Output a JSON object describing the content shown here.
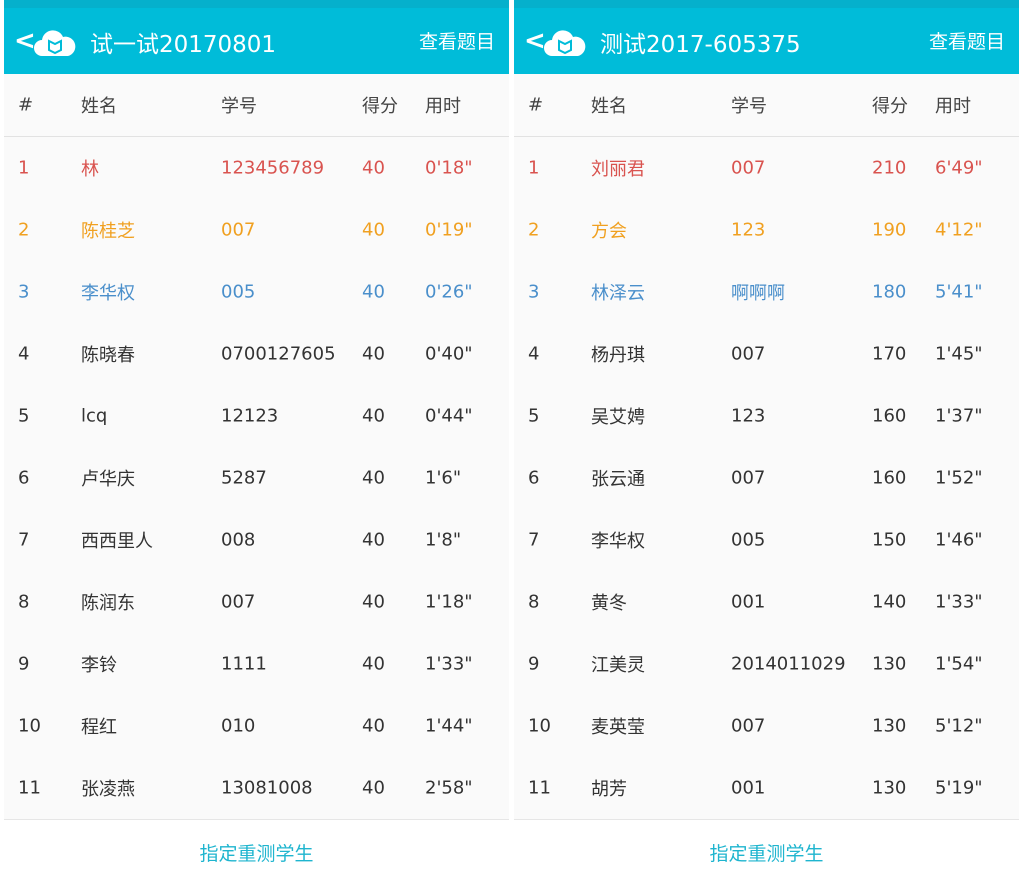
{
  "columns": [
    "#",
    "姓名",
    "学号",
    "得分",
    "用时"
  ],
  "view_questions_label": "查看题目",
  "retest_label": "指定重测学生",
  "rank_colors": {
    "1": "#d9534f",
    "2": "#f0a020",
    "3": "#4a8fcb"
  },
  "panels": [
    {
      "title": "试一试20170801",
      "rows": [
        [
          "1",
          "林",
          "123456789",
          "40",
          "0'18\""
        ],
        [
          "2",
          "陈桂芝",
          "007",
          "40",
          "0'19\""
        ],
        [
          "3",
          "李华权",
          "005",
          "40",
          "0'26\""
        ],
        [
          "4",
          "陈晓春",
          "0700127605",
          "40",
          "0'40\""
        ],
        [
          "5",
          "lcq",
          "12123",
          "40",
          "0'44\""
        ],
        [
          "6",
          "卢华庆",
          "5287",
          "40",
          "1'6\""
        ],
        [
          "7",
          "西西里人",
          "008",
          "40",
          "1'8\""
        ],
        [
          "8",
          "陈润东",
          "007",
          "40",
          "1'18\""
        ],
        [
          "9",
          "李铃",
          "1111",
          "40",
          "1'33\""
        ],
        [
          "10",
          "程红",
          "010",
          "40",
          "1'44\""
        ],
        [
          "11",
          "张凌燕",
          "13081008",
          "40",
          "2'58\""
        ]
      ]
    },
    {
      "title": "测试2017-605375",
      "rows": [
        [
          "1",
          "刘丽君",
          "007",
          "210",
          "6'49\""
        ],
        [
          "2",
          "方会",
          "123",
          "190",
          "4'12\""
        ],
        [
          "3",
          "林泽云",
          "啊啊啊",
          "180",
          "5'41\""
        ],
        [
          "4",
          "杨丹琪",
          "007",
          "170",
          "1'45\""
        ],
        [
          "5",
          "吴艾娉",
          "123",
          "160",
          "1'37\""
        ],
        [
          "6",
          "张云通",
          "007",
          "160",
          "1'52\""
        ],
        [
          "7",
          "李华权",
          "005",
          "150",
          "1'46\""
        ],
        [
          "8",
          "黄冬",
          "001",
          "140",
          "1'33\""
        ],
        [
          "9",
          "江美灵",
          "2014011029",
          "130",
          "1'54\""
        ],
        [
          "10",
          "麦英莹",
          "007",
          "130",
          "5'12\""
        ],
        [
          "11",
          "胡芳",
          "001",
          "130",
          "5'19\""
        ]
      ]
    }
  ]
}
